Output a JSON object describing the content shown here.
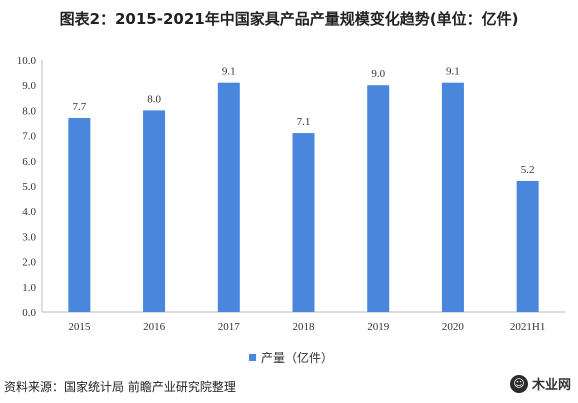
{
  "chart_data": {
    "type": "bar",
    "title": "图表2：2015-2021年中国家具产品产量规模变化趋势(单位：亿件)",
    "categories": [
      "2015",
      "2016",
      "2017",
      "2018",
      "2019",
      "2020",
      "2021H1"
    ],
    "series": [
      {
        "name": "产量（亿件）",
        "values": [
          7.7,
          8.0,
          9.1,
          7.1,
          9.0,
          9.1,
          5.2
        ]
      }
    ],
    "value_labels": [
      "7.7",
      "8.0",
      "9.1",
      "7.1",
      "9.0",
      "9.1",
      "5.2"
    ],
    "ylim": [
      0,
      10
    ],
    "yticks": [
      "0.0",
      "1.0",
      "2.0",
      "3.0",
      "4.0",
      "5.0",
      "6.0",
      "7.0",
      "8.0",
      "9.0",
      "10.0"
    ],
    "xlabel": "",
    "ylabel": "",
    "grid": false,
    "legend_position": "bottom",
    "bar_color": "#4a86dc"
  },
  "source_text": "资料来源：国家统计局 前瞻产业研究院整理",
  "logo_text": "木业网",
  "logo_icon": "wechat-icon"
}
